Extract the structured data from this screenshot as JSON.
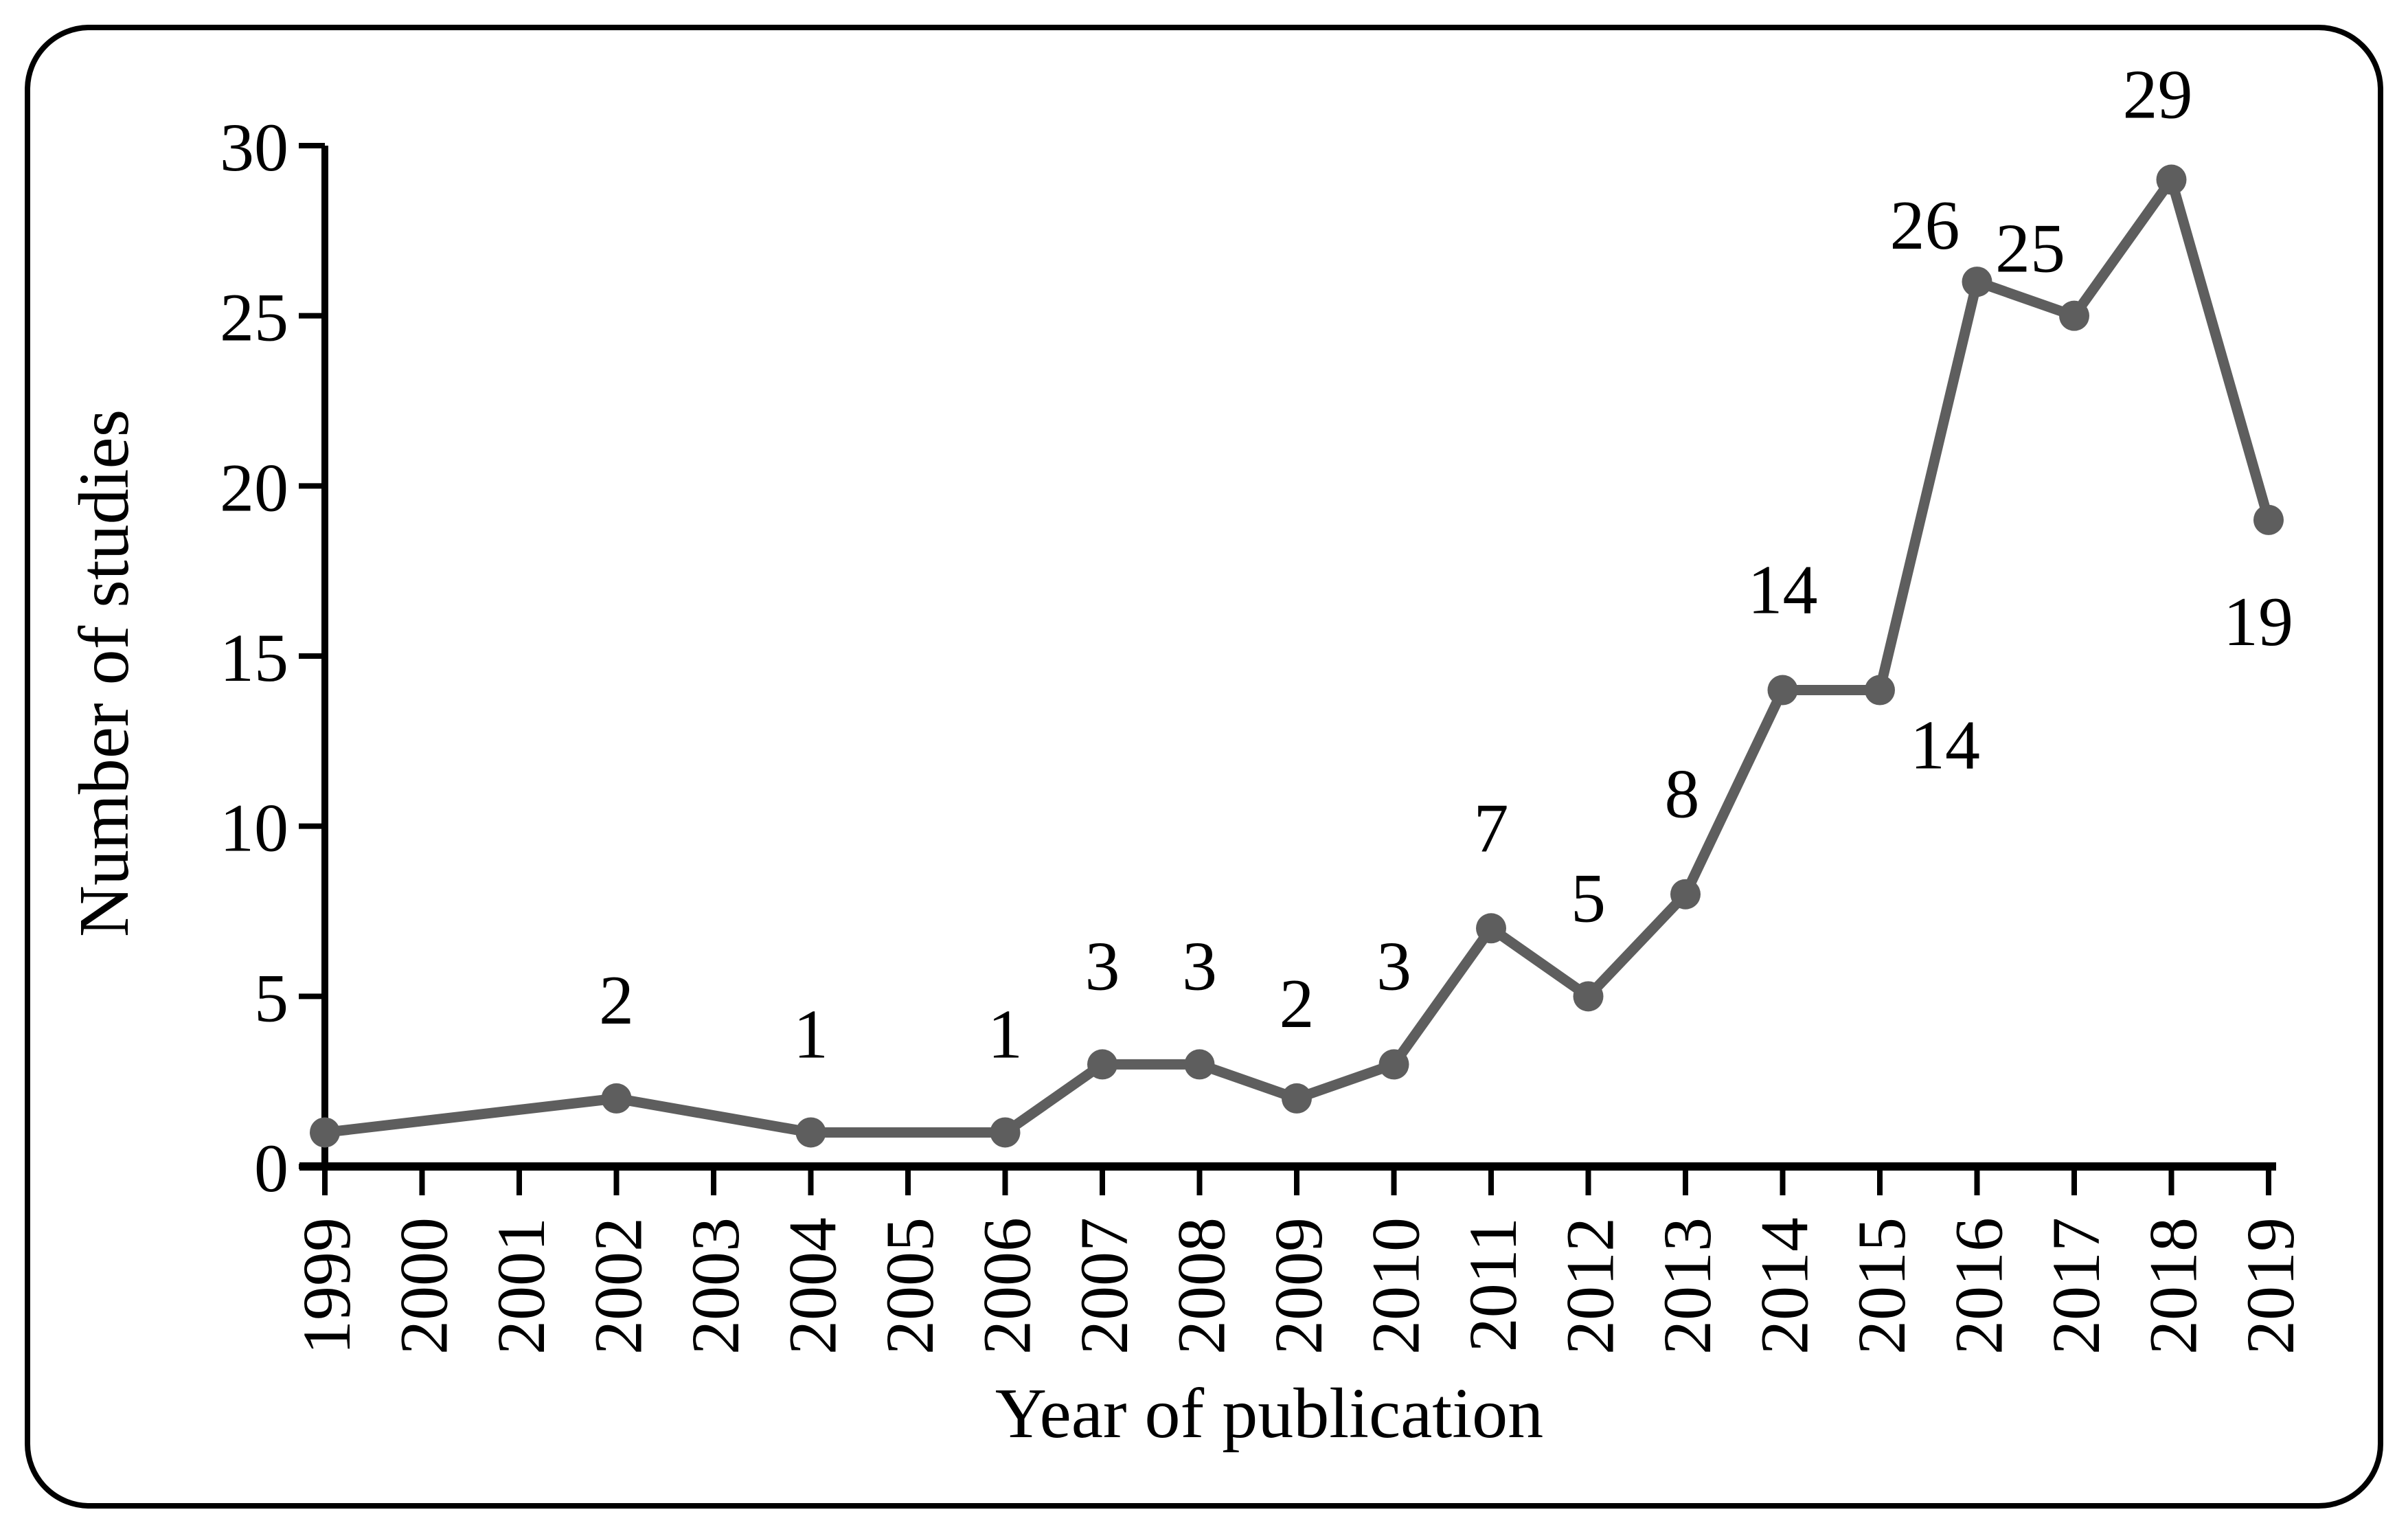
{
  "figure": {
    "background_color": "#ffffff",
    "border_color": "#000000",
    "axis_color": "#000000",
    "text_color": "#000000",
    "series_color": "#5e5e5e"
  },
  "chart_data": {
    "type": "line",
    "title": "",
    "xlabel": "Year of publication",
    "ylabel": "Number of studies",
    "x_categories": [
      "1999",
      "2000",
      "2001",
      "2002",
      "2003",
      "2004",
      "2005",
      "2006",
      "2007",
      "2008",
      "2009",
      "2010",
      "2011",
      "2012",
      "2013",
      "2014",
      "2015",
      "2016",
      "2017",
      "2018",
      "2019"
    ],
    "y_ticks": [
      "0",
      "5",
      "10",
      "15",
      "20",
      "25",
      "30"
    ],
    "ylim": [
      0,
      30
    ],
    "grid": false,
    "legend_position": "none",
    "marker_style": "filled-circle",
    "series": [
      {
        "name": "Number of studies",
        "color": "#5e5e5e",
        "points": [
          {
            "year": 1999,
            "value": 1,
            "label": "",
            "label_dx": 0,
            "label_dy": 0
          },
          {
            "year": 2002,
            "value": 2,
            "label": "2",
            "label_dx": 0,
            "label_dy": -145
          },
          {
            "year": 2004,
            "value": 1,
            "label": "1",
            "label_dx": 0,
            "label_dy": -145
          },
          {
            "year": 2006,
            "value": 1,
            "label": "1",
            "label_dx": 0,
            "label_dy": -145
          },
          {
            "year": 2007,
            "value": 3,
            "label": "3",
            "label_dx": 0,
            "label_dy": -145
          },
          {
            "year": 2008,
            "value": 3,
            "label": "3",
            "label_dx": 0,
            "label_dy": -145
          },
          {
            "year": 2009,
            "value": 2,
            "label": "2",
            "label_dx": 0,
            "label_dy": -140
          },
          {
            "year": 2010,
            "value": 3,
            "label": "3",
            "label_dx": 0,
            "label_dy": -145
          },
          {
            "year": 2011,
            "value": 7,
            "label": "7",
            "label_dx": 0,
            "label_dy": -148
          },
          {
            "year": 2012,
            "value": 5,
            "label": "5",
            "label_dx": 0,
            "label_dy": -145
          },
          {
            "year": 2013,
            "value": 8,
            "label": "8",
            "label_dx": -5,
            "label_dy": -148
          },
          {
            "year": 2014,
            "value": 14,
            "label": "14",
            "label_dx": 0,
            "label_dy": -148
          },
          {
            "year": 2015,
            "value": 14,
            "label": "14",
            "label_dx": 95,
            "label_dy": 78
          },
          {
            "year": 2016,
            "value": 26,
            "label": "26",
            "label_dx": -76,
            "label_dy": -84
          },
          {
            "year": 2017,
            "value": 25,
            "label": "25",
            "label_dx": -64,
            "label_dy": -100
          },
          {
            "year": 2018,
            "value": 29,
            "label": "29",
            "label_dx": -20,
            "label_dy": -126
          },
          {
            "year": 2019,
            "value": 19,
            "label": "19",
            "label_dx": -15,
            "label_dy": 146
          }
        ]
      }
    ]
  }
}
